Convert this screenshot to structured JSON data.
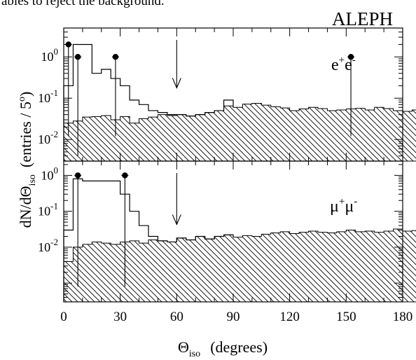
{
  "caption_fragment": "ables to reject the background.",
  "experiment_label": "ALEPH",
  "x_axis": {
    "label_symbol": "Θ",
    "label_subscript": "iso",
    "label_units": "(degrees)",
    "ticks": [
      0,
      30,
      60,
      90,
      120,
      150,
      180
    ],
    "range": [
      0,
      180
    ],
    "bin_width": 5
  },
  "y_axis": {
    "label_prefix": "dN/dΘ",
    "label_subscript": "iso",
    "label_entries": "(entries / 5",
    "label_degree": "o",
    "label_close": ")",
    "scale": "log"
  },
  "chart_data": [
    {
      "type": "bar",
      "panel": "top",
      "channel_label_base": "e",
      "channel_label_sup1": "+",
      "channel_label_mid": "e",
      "channel_label_sup2": "-",
      "cut_value": 60,
      "yscale": "log",
      "ylim": [
        0.003,
        5
      ],
      "yticks": [
        {
          "value": 1,
          "mantissa": "10",
          "exponent": "0"
        },
        {
          "value": 0.1,
          "mantissa": "10",
          "exponent": "-1"
        },
        {
          "value": 0.01,
          "mantissa": "10",
          "exponent": "-2"
        }
      ],
      "bin_edges_start": 0,
      "bin_width": 5,
      "background_hist": [
        0.025,
        0.028,
        0.035,
        0.036,
        0.038,
        0.03,
        0.036,
        0.025,
        0.032,
        0.035,
        0.04,
        0.038,
        0.04,
        0.037,
        0.04,
        0.045,
        0.05,
        0.065,
        0.06,
        0.072,
        0.075,
        0.068,
        0.062,
        0.058,
        0.05,
        0.055,
        0.06,
        0.056,
        0.05,
        0.052,
        0.055,
        0.057,
        0.052,
        0.06,
        0.056,
        0.05,
        0.048,
        0.052,
        0.047,
        0.049,
        0.043,
        0.05,
        0.045,
        0.048,
        0.052,
        0.045,
        0.058,
        0.052,
        0.044,
        0.042,
        0.05,
        0.044,
        0.04,
        0.05,
        0.055,
        0.05,
        0.052,
        0.058,
        0.055,
        0.06,
        0.058,
        0.055,
        0.05,
        0.048,
        0.055,
        0.06,
        0.065,
        0.055,
        0.058,
        0.05,
        0.052,
        0.055
      ],
      "signal_hist": [
        0.2,
        2.0,
        2.0,
        0.4,
        0.5,
        0.3,
        0.2,
        0.09,
        0.07,
        0.05,
        0.045,
        0.04,
        0.04,
        0.037,
        0.04,
        0.045,
        0.05,
        0.09
      ],
      "data_points": [
        {
          "x": 2.5,
          "y": 2.0,
          "yerr_low": 0.012,
          "yerr_high": 2.0
        },
        {
          "x": 7.5,
          "y": 1.0,
          "yerr_low": 0.004,
          "yerr_high": 1.0
        },
        {
          "x": 27.5,
          "y": 1.0,
          "yerr_low": 0.012,
          "yerr_high": 1.0
        },
        {
          "x": 152.5,
          "y": 1.0,
          "yerr_low": 0.012,
          "yerr_high": 1.0
        }
      ]
    },
    {
      "type": "bar",
      "panel": "bottom",
      "channel_label_base": "μ",
      "channel_label_sup1": "+",
      "channel_label_mid": "μ",
      "channel_label_sup2": "-",
      "cut_value": 60,
      "yscale": "log",
      "ylim": [
        0.0003,
        2.5
      ],
      "yticks": [
        {
          "value": 1,
          "mantissa": "10",
          "exponent": "0"
        },
        {
          "value": 0.1,
          "mantissa": "10",
          "exponent": "-1"
        },
        {
          "value": 0.01,
          "mantissa": "10",
          "exponent": "-2"
        }
      ],
      "bin_edges_start": 0,
      "bin_width": 5,
      "background_hist": [
        0.004,
        0.01,
        0.012,
        0.014,
        0.013,
        0.012,
        0.014,
        0.015,
        0.013,
        0.016,
        0.015,
        0.014,
        0.018,
        0.016,
        0.02,
        0.017,
        0.02,
        0.022,
        0.019,
        0.021,
        0.02,
        0.023,
        0.025,
        0.027,
        0.024,
        0.026,
        0.028,
        0.026,
        0.025,
        0.027,
        0.03,
        0.027,
        0.028,
        0.026,
        0.028,
        0.032,
        0.028,
        0.029,
        0.03,
        0.031,
        0.027,
        0.03,
        0.032,
        0.031,
        0.033,
        0.03,
        0.032,
        0.028,
        0.03,
        0.031,
        0.027,
        0.028,
        0.03,
        0.026,
        0.027,
        0.03,
        0.028,
        0.025,
        0.028,
        0.03,
        0.026,
        0.029,
        0.03,
        0.028,
        0.026,
        0.03,
        0.028,
        0.027,
        0.029,
        0.028,
        0.03,
        0.032
      ],
      "signal_hist": [
        0.03,
        0.8,
        0.7,
        0.7,
        0.7,
        0.7,
        0.3,
        0.1,
        0.04,
        0.02,
        0.015,
        0.014,
        0.018,
        0.016,
        0.02,
        0.017,
        0.02,
        0.022
      ],
      "data_points": [
        {
          "x": 7.5,
          "y": 1.0,
          "yerr_low": 0.0008,
          "yerr_high": 1.0
        },
        {
          "x": 32.5,
          "y": 1.0,
          "yerr_low": 0.0008,
          "yerr_high": 1.0
        }
      ]
    }
  ]
}
